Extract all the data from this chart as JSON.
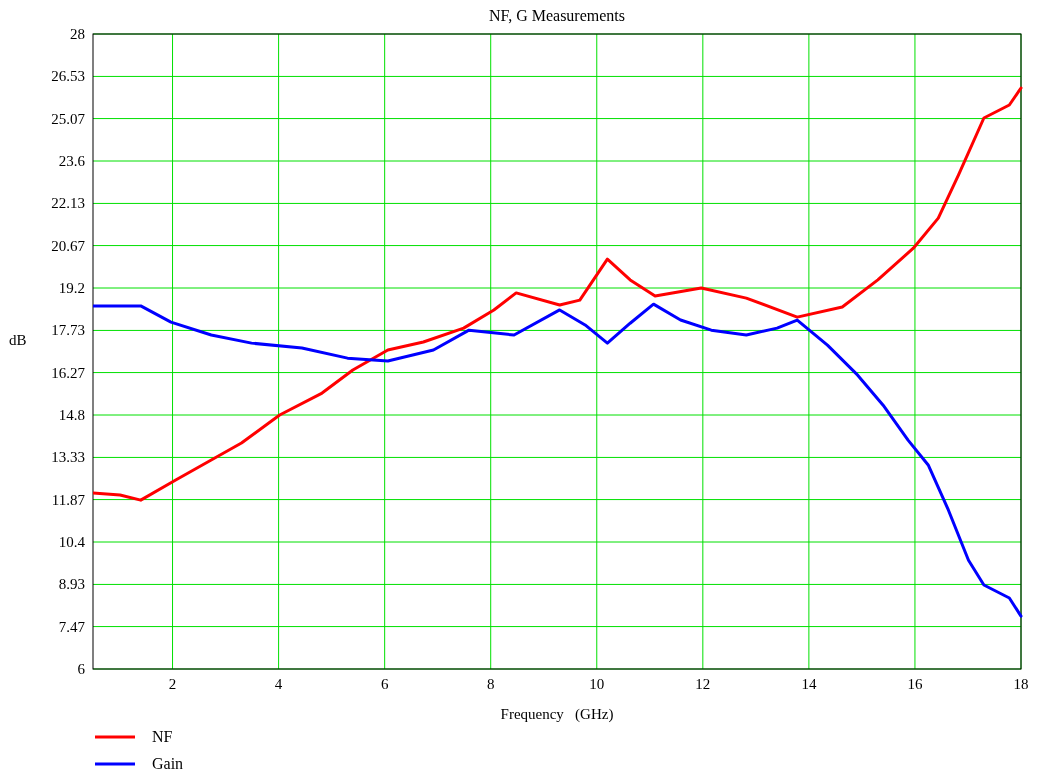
{
  "chart_data": {
    "type": "line",
    "title": "NF, G Measurements",
    "xlabel": "Frequency   (GHz)",
    "ylabel": "dB",
    "xlim": [
      0.5,
      18
    ],
    "xticks": [
      2,
      4,
      6,
      8,
      10,
      12,
      14,
      16,
      18
    ],
    "ylim": [
      6,
      28
    ],
    "yticks": [
      6,
      7.47,
      8.93,
      10.4,
      11.87,
      13.33,
      14.8,
      16.27,
      17.73,
      19.2,
      20.67,
      22.13,
      23.6,
      25.07,
      26.53,
      28
    ],
    "grid": true,
    "legend": "bottom left",
    "line_style": "solid",
    "marker": "none",
    "series": [
      {
        "name": "NF",
        "color": "#ff0000",
        "x": [
          0.5,
          1.01,
          1.4,
          2.06,
          2.73,
          3.3,
          4.02,
          4.82,
          5.4,
          6.06,
          6.73,
          7.49,
          8.06,
          8.48,
          9.3,
          9.68,
          10.2,
          10.63,
          11.1,
          11.97,
          12.82,
          13.78,
          14.63,
          15.3,
          15.97,
          16.44,
          16.82,
          17.3,
          17.78,
          18
        ],
        "values": [
          12.1,
          12.03,
          11.85,
          12.55,
          13.24,
          13.83,
          14.8,
          15.56,
          16.36,
          17.05,
          17.33,
          17.81,
          18.44,
          19.03,
          18.61,
          18.78,
          20.2,
          19.48,
          18.92,
          19.2,
          18.85,
          18.19,
          18.54,
          19.48,
          20.58,
          21.62,
          23.11,
          25.09,
          25.54,
          26.13
        ]
      },
      {
        "name": "Gain",
        "color": "#0000ff",
        "x": [
          0.5,
          1.4,
          1.97,
          2.73,
          3.49,
          4.44,
          5.3,
          6.06,
          6.92,
          7.59,
          8.44,
          9.3,
          9.78,
          10.2,
          10.63,
          11.07,
          11.58,
          12.16,
          12.82,
          13.4,
          13.78,
          14.35,
          14.92,
          15.4,
          15.87,
          16.25,
          16.63,
          17.01,
          17.3,
          17.78,
          18
        ],
        "values": [
          18.58,
          18.58,
          18.02,
          17.57,
          17.29,
          17.12,
          16.77,
          16.67,
          17.05,
          17.74,
          17.57,
          18.44,
          17.92,
          17.29,
          17.98,
          18.64,
          18.09,
          17.74,
          17.57,
          17.81,
          18.09,
          17.22,
          16.18,
          15.14,
          13.93,
          13.07,
          11.51,
          9.77,
          8.91,
          8.46,
          7.83
        ]
      }
    ]
  }
}
